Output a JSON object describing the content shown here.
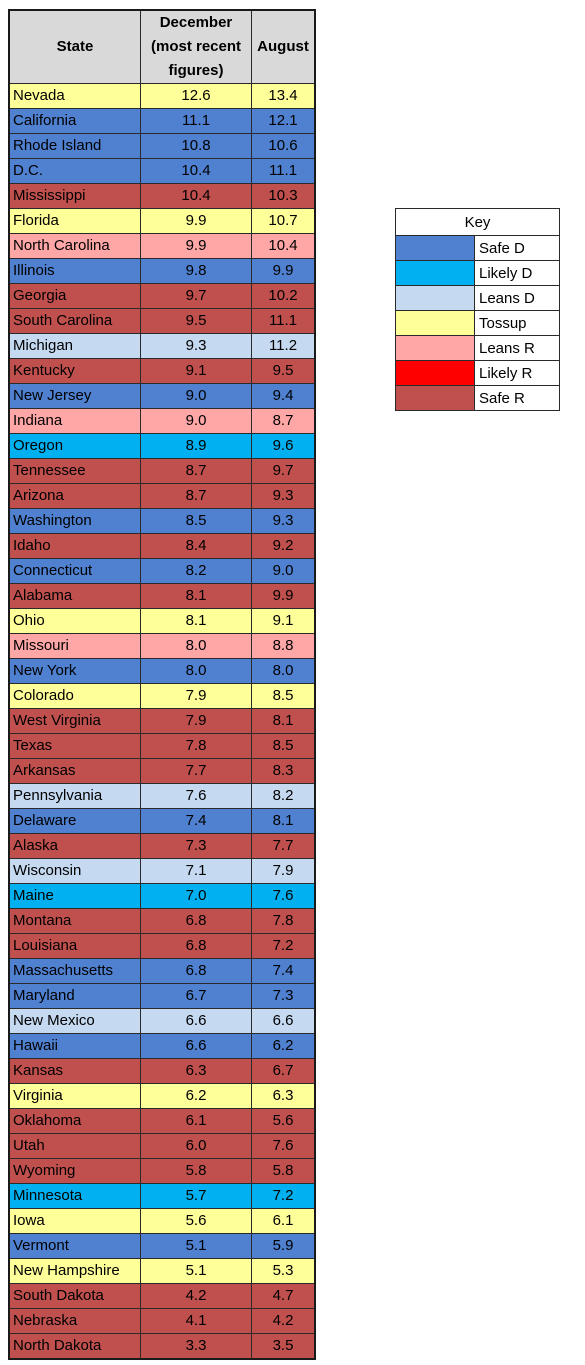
{
  "chart_data": {
    "type": "table",
    "columns": [
      "State",
      "December (most recent figures)",
      "August"
    ],
    "header": {
      "state": "State",
      "dec_lines": [
        "December",
        "(most recent",
        "figures)"
      ],
      "aug": "August"
    },
    "rows": [
      {
        "state": "Nevada",
        "dec": "12.6",
        "aug": "13.4",
        "cat": "Tossup"
      },
      {
        "state": "California",
        "dec": "11.1",
        "aug": "12.1",
        "cat": "Safe D"
      },
      {
        "state": "Rhode Island",
        "dec": "10.8",
        "aug": "10.6",
        "cat": "Safe D"
      },
      {
        "state": "D.C.",
        "dec": "10.4",
        "aug": "11.1",
        "cat": "Safe D"
      },
      {
        "state": "Mississippi",
        "dec": "10.4",
        "aug": "10.3",
        "cat": "Safe R"
      },
      {
        "state": "Florida",
        "dec": "9.9",
        "aug": "10.7",
        "cat": "Tossup"
      },
      {
        "state": "North Carolina",
        "dec": "9.9",
        "aug": "10.4",
        "cat": "Leans R"
      },
      {
        "state": "Illinois",
        "dec": "9.8",
        "aug": "9.9",
        "cat": "Safe D"
      },
      {
        "state": "Georgia",
        "dec": "9.7",
        "aug": "10.2",
        "cat": "Safe R"
      },
      {
        "state": "South Carolina",
        "dec": "9.5",
        "aug": "11.1",
        "cat": "Safe R"
      },
      {
        "state": "Michigan",
        "dec": "9.3",
        "aug": "11.2",
        "cat": "Leans D"
      },
      {
        "state": "Kentucky",
        "dec": "9.1",
        "aug": "9.5",
        "cat": "Safe R"
      },
      {
        "state": "New Jersey",
        "dec": "9.0",
        "aug": "9.4",
        "cat": "Safe D"
      },
      {
        "state": "Indiana",
        "dec": "9.0",
        "aug": "8.7",
        "cat": "Leans R"
      },
      {
        "state": "Oregon",
        "dec": "8.9",
        "aug": "9.6",
        "cat": "Likely D"
      },
      {
        "state": "Tennessee",
        "dec": "8.7",
        "aug": "9.7",
        "cat": "Safe R"
      },
      {
        "state": "Arizona",
        "dec": "8.7",
        "aug": "9.3",
        "cat": "Safe R"
      },
      {
        "state": "Washington",
        "dec": "8.5",
        "aug": "9.3",
        "cat": "Safe D"
      },
      {
        "state": "Idaho",
        "dec": "8.4",
        "aug": "9.2",
        "cat": "Safe R"
      },
      {
        "state": "Connecticut",
        "dec": "8.2",
        "aug": "9.0",
        "cat": "Safe D"
      },
      {
        "state": "Alabama",
        "dec": "8.1",
        "aug": "9.9",
        "cat": "Safe R"
      },
      {
        "state": "Ohio",
        "dec": "8.1",
        "aug": "9.1",
        "cat": "Tossup"
      },
      {
        "state": "Missouri",
        "dec": "8.0",
        "aug": "8.8",
        "cat": "Leans R"
      },
      {
        "state": "New York",
        "dec": "8.0",
        "aug": "8.0",
        "cat": "Safe D"
      },
      {
        "state": "Colorado",
        "dec": "7.9",
        "aug": "8.5",
        "cat": "Tossup"
      },
      {
        "state": "West Virginia",
        "dec": "7.9",
        "aug": "8.1",
        "cat": "Safe R"
      },
      {
        "state": "Texas",
        "dec": "7.8",
        "aug": "8.5",
        "cat": "Safe R"
      },
      {
        "state": "Arkansas",
        "dec": "7.7",
        "aug": "8.3",
        "cat": "Safe R"
      },
      {
        "state": "Pennsylvania",
        "dec": "7.6",
        "aug": "8.2",
        "cat": "Leans D"
      },
      {
        "state": "Delaware",
        "dec": "7.4",
        "aug": "8.1",
        "cat": "Safe D"
      },
      {
        "state": "Alaska",
        "dec": "7.3",
        "aug": "7.7",
        "cat": "Safe R"
      },
      {
        "state": "Wisconsin",
        "dec": "7.1",
        "aug": "7.9",
        "cat": "Leans D"
      },
      {
        "state": "Maine",
        "dec": "7.0",
        "aug": "7.6",
        "cat": "Likely D"
      },
      {
        "state": "Montana",
        "dec": "6.8",
        "aug": "7.8",
        "cat": "Safe R"
      },
      {
        "state": "Louisiana",
        "dec": "6.8",
        "aug": "7.2",
        "cat": "Safe R"
      },
      {
        "state": "Massachusetts",
        "dec": "6.8",
        "aug": "7.4",
        "cat": "Safe D"
      },
      {
        "state": "Maryland",
        "dec": "6.7",
        "aug": "7.3",
        "cat": "Safe D"
      },
      {
        "state": "New Mexico",
        "dec": "6.6",
        "aug": "6.6",
        "cat": "Leans D"
      },
      {
        "state": "Hawaii",
        "dec": "6.6",
        "aug": "6.2",
        "cat": "Safe D"
      },
      {
        "state": "Kansas",
        "dec": "6.3",
        "aug": "6.7",
        "cat": "Safe R"
      },
      {
        "state": "Virginia",
        "dec": "6.2",
        "aug": "6.3",
        "cat": "Tossup"
      },
      {
        "state": "Oklahoma",
        "dec": "6.1",
        "aug": "5.6",
        "cat": "Safe R"
      },
      {
        "state": "Utah",
        "dec": "6.0",
        "aug": "7.6",
        "cat": "Safe R"
      },
      {
        "state": "Wyoming",
        "dec": "5.8",
        "aug": "5.8",
        "cat": "Safe R"
      },
      {
        "state": "Minnesota",
        "dec": "5.7",
        "aug": "7.2",
        "cat": "Likely D"
      },
      {
        "state": "Iowa",
        "dec": "5.6",
        "aug": "6.1",
        "cat": "Tossup"
      },
      {
        "state": "Vermont",
        "dec": "5.1",
        "aug": "5.9",
        "cat": "Safe D"
      },
      {
        "state": "New Hampshire",
        "dec": "5.1",
        "aug": "5.3",
        "cat": "Tossup"
      },
      {
        "state": "South Dakota",
        "dec": "4.2",
        "aug": "4.7",
        "cat": "Safe R"
      },
      {
        "state": "Nebraska",
        "dec": "4.1",
        "aug": "4.2",
        "cat": "Safe R"
      },
      {
        "state": "North Dakota",
        "dec": "3.3",
        "aug": "3.5",
        "cat": "Safe R"
      }
    ]
  },
  "key": {
    "title": "Key",
    "items": [
      {
        "label": "Safe D",
        "color": "#4f81d0"
      },
      {
        "label": "Likely D",
        "color": "#00b0f0"
      },
      {
        "label": "Leans D",
        "color": "#c5d9f1"
      },
      {
        "label": "Tossup",
        "color": "#ffff99"
      },
      {
        "label": "Leans R",
        "color": "#ffa7a7"
      },
      {
        "label": "Likely R",
        "color": "#ff0000"
      },
      {
        "label": "Safe R",
        "color": "#c0504d"
      }
    ]
  }
}
